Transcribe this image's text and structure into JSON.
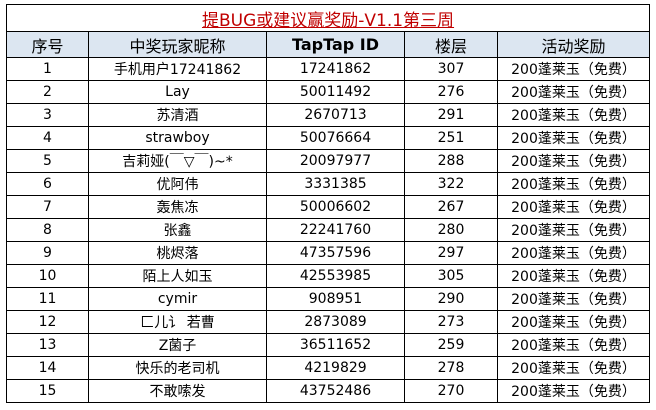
{
  "title": "提BUG或建议赢奖励-V1.1第三周",
  "headers": {
    "index": "序号",
    "player": "中奖玩家昵称",
    "taptap_id": "TapTap ID",
    "floor": "楼层",
    "reward": "活动奖励"
  },
  "rows": [
    {
      "index": "1",
      "player": "手机用户17241862",
      "taptap_id": "17241862",
      "floor": "307",
      "reward": "200蓬莱玉（免费）"
    },
    {
      "index": "2",
      "player": "Lay",
      "taptap_id": "50011492",
      "floor": "276",
      "reward": "200蓬莱玉（免费）"
    },
    {
      "index": "3",
      "player": "苏清酒",
      "taptap_id": "2670713",
      "floor": "291",
      "reward": "200蓬莱玉（免费）"
    },
    {
      "index": "4",
      "player": "strawboy",
      "taptap_id": "50076664",
      "floor": "251",
      "reward": "200蓬莱玉（免费）"
    },
    {
      "index": "5",
      "player": "吉莉娅(￣▽￣)~*",
      "taptap_id": "20097977",
      "floor": "288",
      "reward": "200蓬莱玉（免费）"
    },
    {
      "index": "6",
      "player": "优阿伟",
      "taptap_id": "3331385",
      "floor": "322",
      "reward": "200蓬莱玉（免费）"
    },
    {
      "index": "7",
      "player": "轰焦冻",
      "taptap_id": "50006602",
      "floor": "267",
      "reward": "200蓬莱玉（免费）"
    },
    {
      "index": "8",
      "player": "张鑫",
      "taptap_id": "22241760",
      "floor": "280",
      "reward": "200蓬莱玉（免费）"
    },
    {
      "index": "9",
      "player": "桃烬落",
      "taptap_id": "47357596",
      "floor": "297",
      "reward": "200蓬莱玉（免费）"
    },
    {
      "index": "10",
      "player": "陌上人如玉",
      "taptap_id": "42553985",
      "floor": "305",
      "reward": "200蓬莱玉（免费）"
    },
    {
      "index": "11",
      "player": "cymir",
      "taptap_id": "908951",
      "floor": "290",
      "reward": "200蓬莱玉（免费）"
    },
    {
      "index": "12",
      "player": "匚儿讠 若曹",
      "taptap_id": "2873089",
      "floor": "273",
      "reward": "200蓬莱玉（免费）"
    },
    {
      "index": "13",
      "player": "Z菌子",
      "taptap_id": "36511652",
      "floor": "259",
      "reward": "200蓬莱玉（免费）"
    },
    {
      "index": "14",
      "player": "快乐的老司机",
      "taptap_id": "4219829",
      "floor": "278",
      "reward": "200蓬莱玉（免费）"
    },
    {
      "index": "15",
      "player": "不敢嗦发",
      "taptap_id": "43752486",
      "floor": "270",
      "reward": "200蓬莱玉（免费）"
    }
  ]
}
